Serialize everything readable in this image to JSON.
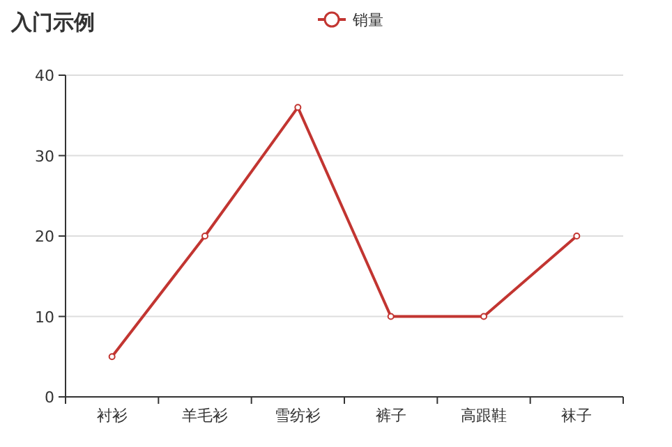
{
  "chart_data": {
    "type": "line",
    "title": "入门示例",
    "categories": [
      "衬衫",
      "羊毛衫",
      "雪纺衫",
      "裤子",
      "高跟鞋",
      "袜子"
    ],
    "series": [
      {
        "name": "销量",
        "color": "#c23531",
        "values": [
          5,
          20,
          36,
          10,
          10,
          20
        ]
      }
    ],
    "ylim": [
      0,
      40
    ],
    "yticks": [
      0,
      10,
      20,
      30,
      40
    ],
    "grid": "y",
    "legend": "top",
    "marker": "circle",
    "line_style": "solid"
  }
}
